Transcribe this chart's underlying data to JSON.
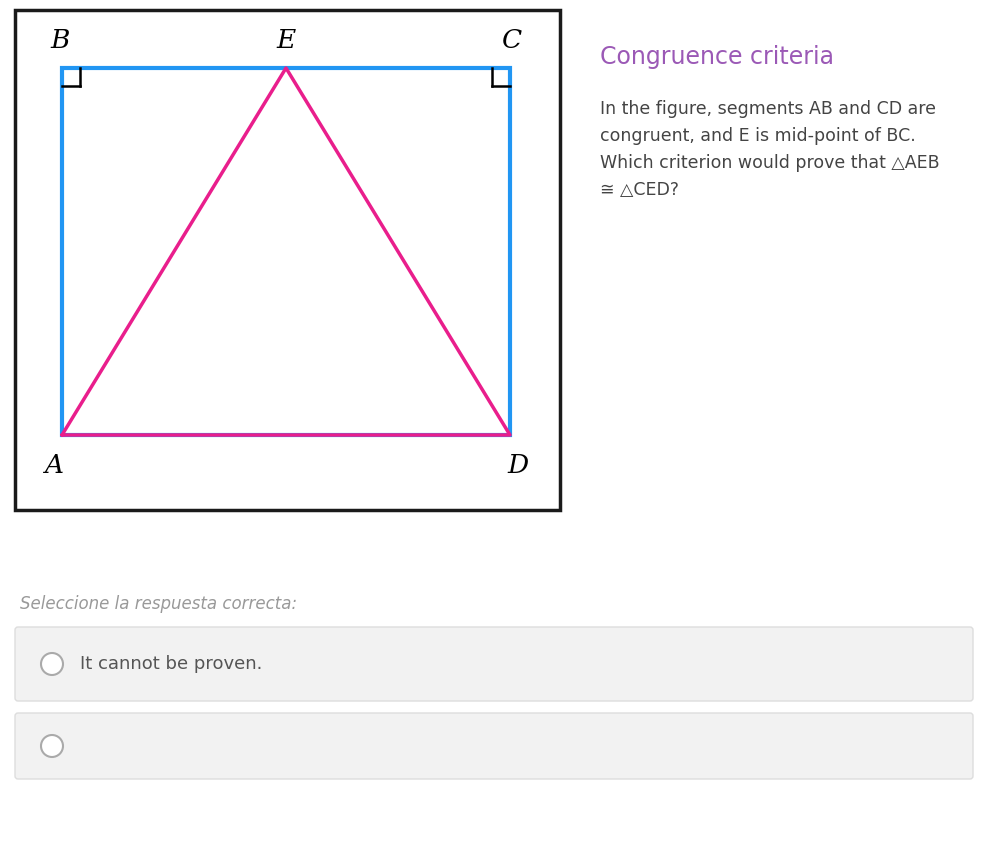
{
  "title": "Congruence criteria",
  "title_color": "#9b59b6",
  "description": "In the figure, segments AB and CD are\ncongruent, and E is mid-point of BC.\nWhich criterion would prove that △AEB\n≅ △CED?",
  "select_label": "Seleccione la respuesta correcta:",
  "answer_text": "It cannot be proven.",
  "bg_color": "#ffffff",
  "outer_rect_color": "#1a1a1a",
  "blue_rect_color": "#2196F3",
  "pink_color": "#E91E8C",
  "answer_bg": "#f2f2f2",
  "answer_border": "#dddddd",
  "text_color": "#444444",
  "select_color": "#999999",
  "radio_fill": "#ffffff",
  "radio_border": "#aaaaaa"
}
